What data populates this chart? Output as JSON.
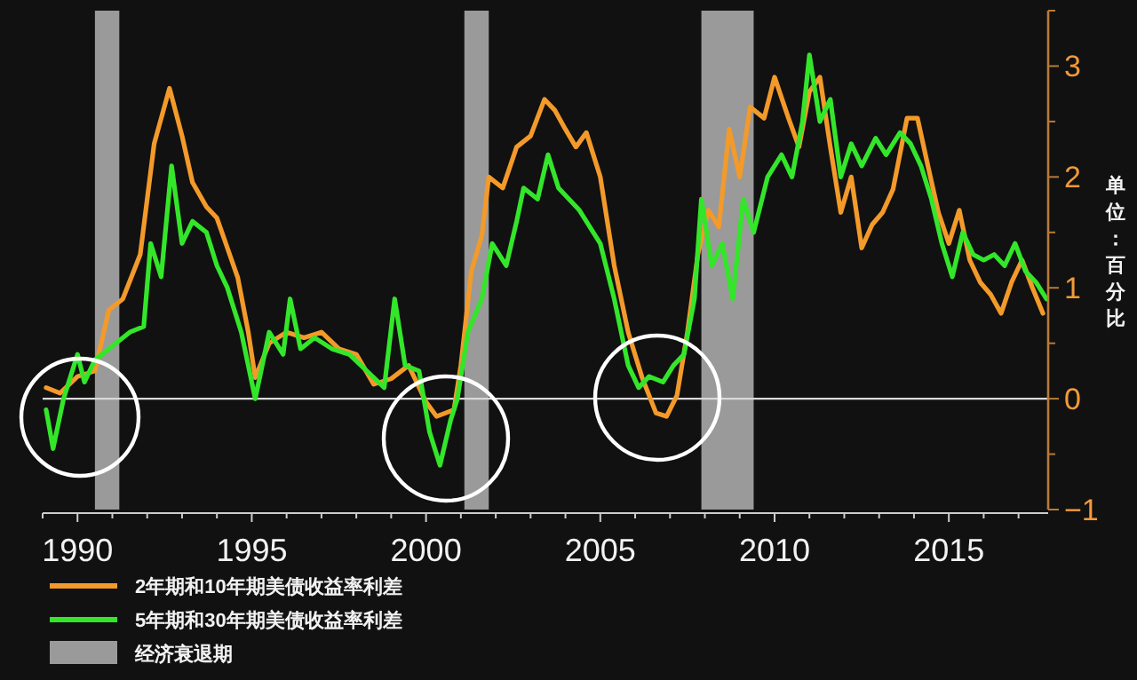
{
  "chart_data": {
    "type": "line",
    "ylabel": "单位：百分比",
    "xlim": [
      1989,
      2017.85
    ],
    "xticks": [
      {
        "value": 1989,
        "label": null
      },
      {
        "value": 1990,
        "label": "1990"
      },
      {
        "value": 1991,
        "label": null
      },
      {
        "value": 1992,
        "label": null
      },
      {
        "value": 1993,
        "label": null
      },
      {
        "value": 1994,
        "label": null
      },
      {
        "value": 1995,
        "label": "1995"
      },
      {
        "value": 1996,
        "label": null
      },
      {
        "value": 1997,
        "label": null
      },
      {
        "value": 1998,
        "label": null
      },
      {
        "value": 1999,
        "label": null
      },
      {
        "value": 2000,
        "label": "2000"
      },
      {
        "value": 2001,
        "label": null
      },
      {
        "value": 2002,
        "label": null
      },
      {
        "value": 2003,
        "label": null
      },
      {
        "value": 2004,
        "label": null
      },
      {
        "value": 2005,
        "label": "2005"
      },
      {
        "value": 2006,
        "label": null
      },
      {
        "value": 2007,
        "label": null
      },
      {
        "value": 2008,
        "label": null
      },
      {
        "value": 2009,
        "label": null
      },
      {
        "value": 2010,
        "label": "2010"
      },
      {
        "value": 2011,
        "label": null
      },
      {
        "value": 2012,
        "label": null
      },
      {
        "value": 2013,
        "label": null
      },
      {
        "value": 2014,
        "label": null
      },
      {
        "value": 2015,
        "label": "2015"
      },
      {
        "value": 2016,
        "label": null
      },
      {
        "value": 2017,
        "label": null
      }
    ],
    "ylim": [
      -1,
      3.5
    ],
    "yticks": [
      -1,
      {
        "value": -0.5,
        "label": null
      },
      0,
      {
        "value": 0.5,
        "label": null
      },
      1,
      {
        "value": 1.5,
        "label": null
      },
      2,
      {
        "value": 2.5,
        "label": null
      },
      3,
      {
        "value": 3.5,
        "label": null
      }
    ],
    "grid": false,
    "legend": "bottom left",
    "line_style": "solid",
    "marker": "none",
    "ref_lines": [
      {
        "axis": "y",
        "value": 0,
        "color": "#d9d9d9"
      }
    ],
    "bands": [
      {
        "axis": "x",
        "from": 1990.5,
        "to": 1991.2,
        "label": "经济衰退期",
        "color": "#9a9a9a"
      },
      {
        "axis": "x",
        "from": 2001.1,
        "to": 2001.8,
        "color": "#9a9a9a"
      },
      {
        "axis": "x",
        "from": 2007.9,
        "to": 2009.4,
        "color": "#9a9a9a"
      }
    ],
    "series": [
      {
        "name": "2年期和10年期美债收益率利差",
        "color": "#f39a2a",
        "x": [
          1989.1,
          1989.5,
          1990.0,
          1990.5,
          1990.9,
          1991.3,
          1991.8,
          1992.2,
          1992.64,
          1993.0,
          1993.3,
          1993.7,
          1994.0,
          1994.3,
          1994.6,
          1994.9,
          1995.1,
          1995.5,
          1996.0,
          1996.5,
          1997.0,
          1997.5,
          1998.0,
          1998.5,
          1999.0,
          1999.5,
          2000.0,
          2000.3,
          2000.8,
          2001.0,
          2001.3,
          2001.6,
          2001.8,
          2002.2,
          2002.6,
          2003.0,
          2003.4,
          2003.7,
          2004.0,
          2004.3,
          2004.6,
          2005.0,
          2005.4,
          2005.8,
          2006.2,
          2006.6,
          2006.9,
          2007.2,
          2007.5,
          2007.8,
          2008.1,
          2008.4,
          2008.7,
          2009.0,
          2009.3,
          2009.7,
          2010.0,
          2010.4,
          2010.7,
          2011.0,
          2011.3,
          2011.6,
          2011.9,
          2012.2,
          2012.5,
          2012.8,
          2013.1,
          2013.4,
          2013.8,
          2014.1,
          2014.4,
          2014.7,
          2015.0,
          2015.3,
          2015.6,
          2015.9,
          2016.2,
          2016.5,
          2016.8,
          2017.1,
          2017.4,
          2017.7
        ],
        "values": [
          0.1,
          0.05,
          0.2,
          0.25,
          0.8,
          0.9,
          1.3,
          2.3,
          2.8,
          2.37,
          1.95,
          1.73,
          1.63,
          1.36,
          1.09,
          0.6,
          0.19,
          0.5,
          0.6,
          0.55,
          0.6,
          0.45,
          0.4,
          0.13,
          0.18,
          0.3,
          -0.03,
          -0.16,
          -0.1,
          0.3,
          1.15,
          1.47,
          2.0,
          1.9,
          2.27,
          2.37,
          2.7,
          2.6,
          2.43,
          2.27,
          2.4,
          2.0,
          1.2,
          0.6,
          0.19,
          -0.13,
          -0.16,
          0.03,
          0.6,
          1.3,
          1.7,
          1.55,
          2.43,
          2.0,
          2.63,
          2.53,
          2.9,
          2.53,
          2.27,
          2.77,
          2.9,
          2.27,
          1.68,
          2.0,
          1.36,
          1.57,
          1.68,
          1.89,
          2.53,
          2.53,
          2.1,
          1.68,
          1.4,
          1.7,
          1.25,
          1.05,
          0.94,
          0.77,
          1.05,
          1.25,
          1.0,
          0.77
        ]
      },
      {
        "name": "5年期和30年期美债收益率利差",
        "color": "#33e62a",
        "x": [
          1989.1,
          1989.3,
          1989.6,
          1990.0,
          1990.2,
          1990.5,
          1990.9,
          1991.5,
          1991.9,
          1992.1,
          1992.4,
          1992.7,
          1993.0,
          1993.3,
          1993.7,
          1994.0,
          1994.3,
          1994.7,
          1995.1,
          1995.5,
          1995.9,
          1996.1,
          1996.4,
          1996.8,
          1997.3,
          1997.8,
          1998.3,
          1998.8,
          1999.1,
          1999.4,
          1999.8,
          2000.1,
          2000.4,
          2000.7,
          2000.9,
          2001.2,
          2001.6,
          2001.9,
          2002.3,
          2002.6,
          2002.8,
          2003.2,
          2003.5,
          2003.8,
          2004.1,
          2004.4,
          2004.7,
          2005.0,
          2005.4,
          2005.8,
          2006.1,
          2006.4,
          2006.8,
          2007.1,
          2007.4,
          2007.7,
          2007.9,
          2008.2,
          2008.5,
          2008.8,
          2009.1,
          2009.4,
          2009.8,
          2010.2,
          2010.5,
          2010.8,
          2011.0,
          2011.3,
          2011.6,
          2011.9,
          2012.2,
          2012.5,
          2012.9,
          2013.2,
          2013.6,
          2013.9,
          2014.2,
          2014.5,
          2014.8,
          2015.1,
          2015.4,
          2015.7,
          2016.0,
          2016.3,
          2016.6,
          2016.9,
          2017.2,
          2017.5,
          2017.8
        ],
        "values": [
          -0.1,
          -0.45,
          0.0,
          0.4,
          0.15,
          0.35,
          0.45,
          0.6,
          0.65,
          1.4,
          1.1,
          2.1,
          1.4,
          1.6,
          1.5,
          1.2,
          1.0,
          0.6,
          0.0,
          0.6,
          0.4,
          0.9,
          0.45,
          0.55,
          0.45,
          0.4,
          0.25,
          0.1,
          0.9,
          0.3,
          0.25,
          -0.3,
          -0.6,
          -0.2,
          0.0,
          0.6,
          0.9,
          1.4,
          1.2,
          1.6,
          1.9,
          1.8,
          2.2,
          1.9,
          1.8,
          1.7,
          1.55,
          1.4,
          0.9,
          0.3,
          0.1,
          0.2,
          0.15,
          0.3,
          0.4,
          0.9,
          1.8,
          1.2,
          1.4,
          0.9,
          1.8,
          1.5,
          2.0,
          2.2,
          2.0,
          2.5,
          3.1,
          2.5,
          2.7,
          2.0,
          2.3,
          2.1,
          2.35,
          2.2,
          2.4,
          2.3,
          2.1,
          1.8,
          1.4,
          1.1,
          1.5,
          1.3,
          1.25,
          1.3,
          1.2,
          1.4,
          1.15,
          1.05,
          0.9
        ]
      }
    ]
  }
}
